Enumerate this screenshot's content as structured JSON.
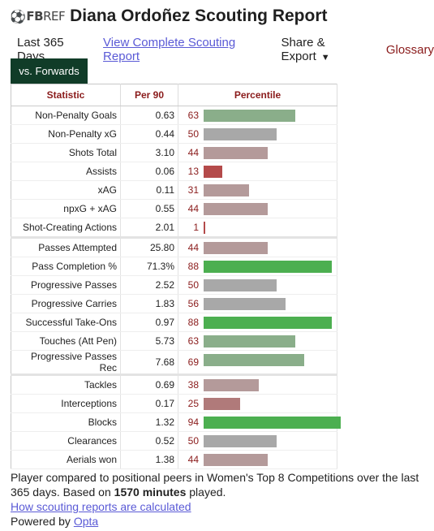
{
  "logo": {
    "fb": "FB",
    "ref": "REF"
  },
  "title": "Diana Ordoñez Scouting Report",
  "nav": {
    "period": "Last 365 Days",
    "report_link": "View Complete Scouting Report",
    "share": "Share & Export",
    "glossary": "Glossary"
  },
  "tab": "vs. Forwards",
  "table": {
    "headers": [
      "Statistic",
      "Per 90",
      "Percentile"
    ],
    "groups": [
      [
        {
          "stat": "Non-Penalty Goals",
          "per90": "0.63",
          "pct": 63
        },
        {
          "stat": "Non-Penalty xG",
          "per90": "0.44",
          "pct": 50
        },
        {
          "stat": "Shots Total",
          "per90": "3.10",
          "pct": 44
        },
        {
          "stat": "Assists",
          "per90": "0.06",
          "pct": 13
        },
        {
          "stat": "xAG",
          "per90": "0.11",
          "pct": 31
        },
        {
          "stat": "npxG + xAG",
          "per90": "0.55",
          "pct": 44
        },
        {
          "stat": "Shot-Creating Actions",
          "per90": "2.01",
          "pct": 1
        }
      ],
      [
        {
          "stat": "Passes Attempted",
          "per90": "25.80",
          "pct": 44
        },
        {
          "stat": "Pass Completion %",
          "per90": "71.3%",
          "pct": 88
        },
        {
          "stat": "Progressive Passes",
          "per90": "2.52",
          "pct": 50
        },
        {
          "stat": "Progressive Carries",
          "per90": "1.83",
          "pct": 56
        },
        {
          "stat": "Successful Take-Ons",
          "per90": "0.97",
          "pct": 88
        },
        {
          "stat": "Touches (Att Pen)",
          "per90": "5.73",
          "pct": 63
        },
        {
          "stat": "Progressive Passes Rec",
          "per90": "7.68",
          "pct": 69
        }
      ],
      [
        {
          "stat": "Tackles",
          "per90": "0.69",
          "pct": 38
        },
        {
          "stat": "Interceptions",
          "per90": "0.17",
          "pct": 25
        },
        {
          "stat": "Blocks",
          "per90": "1.32",
          "pct": 94
        },
        {
          "stat": "Clearances",
          "per90": "0.52",
          "pct": 50
        },
        {
          "stat": "Aerials won",
          "per90": "1.38",
          "pct": 44
        }
      ]
    ]
  },
  "footer": {
    "line1_a": "Player compared to positional peers in Women's Top 8 Competitions over the last 365 days. Based on ",
    "minutes": "1570 minutes",
    "line1_b": " played.",
    "how_link": "How scouting reports are calculated",
    "powered_by": "Powered by ",
    "opta": "Opta"
  }
}
